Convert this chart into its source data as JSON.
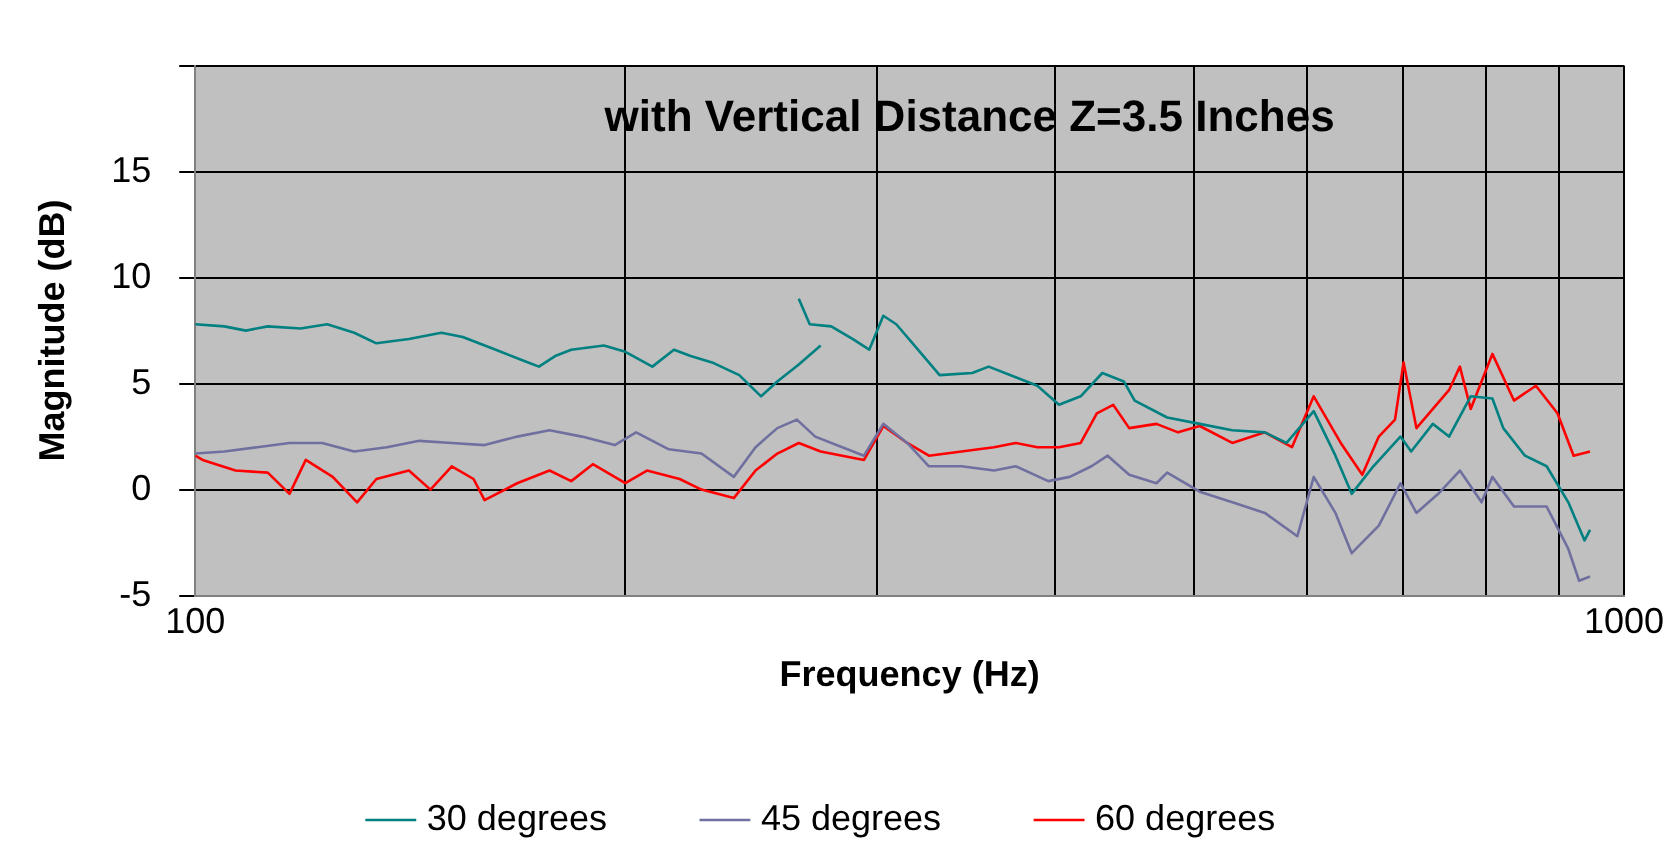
{
  "chart_data": {
    "type": "line",
    "title": "with Vertical Distance Z=3.5 Inches",
    "xlabel": "Frequency (Hz)",
    "ylabel": "Magnitude (dB)",
    "log": "x",
    "xlim": [
      100,
      1000
    ],
    "xticks": [
      100,
      {
        "value": 200,
        "label": null
      },
      {
        "value": 300,
        "label": null
      },
      {
        "value": 400,
        "label": null
      },
      {
        "value": 500,
        "label": null
      },
      {
        "value": 600,
        "label": null
      },
      {
        "value": 700,
        "label": null
      },
      {
        "value": 800,
        "label": null
      },
      {
        "value": 900,
        "label": null
      },
      1000
    ],
    "ylim": [
      -5,
      20
    ],
    "yticks": [
      -5,
      0,
      5,
      10,
      15,
      {
        "value": 20,
        "label": null
      }
    ],
    "grid": true,
    "legend": "bottom",
    "marker": "none",
    "line_style": "solid",
    "series": [
      {
        "name": "30 degrees",
        "color": "#008080",
        "x": [
          100,
          104.8,
          108.5,
          112.4,
          118.5,
          123.7,
          129.2,
          133.9,
          141.1,
          148.7,
          153.9,
          162.3,
          169.4,
          174.0,
          178.6,
          183.3,
          193.2,
          200.0,
          208.9,
          216.3,
          222.2,
          230.0,
          240.3,
          248.9,
          255.5,
          264.5,
          274.0,
          null,
          264.5,
          269.2,
          278.7,
          288.6,
          296.3,
          303.1,
          309.5,
          320.5,
          331.9,
          349.8,
          359.2,
          375.2,
          388.5,
          402.3,
          416.6,
          431.4,
          446.6,
          454.5,
          478.9,
          504.7,
          531.9,
          560.6,
          580.5,
          606.5,
          628.1,
          644.8,
          667.7,
          697.5,
          709.6,
          734.8,
          754.3,
          781.1,
          808.9,
          823.2,
          852.5,
          882.8,
          914.2,
          938.4,
          946.7
        ],
        "values": [
          7.8,
          7.7,
          7.5,
          7.7,
          7.6,
          7.8,
          7.4,
          6.9,
          7.1,
          7.4,
          7.2,
          6.6,
          6.1,
          5.8,
          6.3,
          6.6,
          6.8,
          6.5,
          5.8,
          6.6,
          6.3,
          6.0,
          5.4,
          4.4,
          5.1,
          5.9,
          6.8,
          null,
          9.0,
          7.8,
          7.7,
          7.1,
          6.6,
          8.2,
          7.8,
          6.6,
          5.4,
          5.5,
          5.8,
          5.3,
          4.9,
          4.0,
          4.4,
          5.5,
          5.1,
          4.2,
          3.4,
          3.1,
          2.8,
          2.7,
          2.2,
          3.7,
          1.6,
          -0.2,
          1.1,
          2.5,
          1.8,
          3.1,
          2.5,
          4.4,
          4.3,
          2.9,
          1.6,
          1.1,
          -0.6,
          -2.4,
          -1.9
        ]
      },
      {
        "name": "45 degrees",
        "color": "#7070a0",
        "x": [
          100,
          104.8,
          110.5,
          116.4,
          122.7,
          129.2,
          136.2,
          143.5,
          151.2,
          159.4,
          168.0,
          177.0,
          186.5,
          196.6,
          203.5,
          214.5,
          226.1,
          238.2,
          246.7,
          255.5,
          263.7,
          271.6,
          283.7,
          293.8,
          303.1,
          315.0,
          326.2,
          343.8,
          362.3,
          375.2,
          395.4,
          409.3,
          423.9,
          435.1,
          450.5,
          470.7,
          478.9,
          504.7,
          531.9,
          560.6,
          590.7,
          606.5,
          628.1,
          644.8,
          673.6,
          697.5,
          715.7,
          741.3,
          767.6,
          794.9,
          808.9,
          837.5,
          882.8,
          914.2,
          930.2,
          946.7
        ],
        "values": [
          1.7,
          1.8,
          2.0,
          2.2,
          2.2,
          1.8,
          2.0,
          2.3,
          2.2,
          2.1,
          2.5,
          2.8,
          2.5,
          2.1,
          2.7,
          1.9,
          1.7,
          0.6,
          2.0,
          2.9,
          3.3,
          2.5,
          2.0,
          1.6,
          3.1,
          2.2,
          1.1,
          1.1,
          0.9,
          1.1,
          0.4,
          0.6,
          1.1,
          1.6,
          0.7,
          0.3,
          0.8,
          -0.1,
          -0.6,
          -1.1,
          -2.2,
          0.6,
          -1.1,
          -3.0,
          -1.7,
          0.3,
          -1.1,
          -0.2,
          0.9,
          -0.6,
          0.6,
          -0.8,
          -0.8,
          -2.8,
          -4.3,
          -4.1
        ]
      },
      {
        "name": "60 degrees",
        "color": "#ff0000",
        "x": [
          100,
          101.2,
          106.7,
          112.4,
          116.4,
          119.5,
          124.8,
          129.8,
          133.9,
          141.1,
          146.1,
          151.2,
          156.6,
          159.4,
          168.0,
          177.0,
          183.3,
          189.8,
          200.0,
          207.1,
          218.3,
          226.1,
          238.2,
          246.7,
          255.5,
          264.5,
          274.0,
          283.7,
          293.8,
          303.1,
          315.0,
          326.2,
          343.8,
          362.3,
          375.2,
          388.5,
          402.3,
          416.6,
          427.6,
          439.0,
          450.5,
          470.7,
          487.4,
          504.7,
          531.9,
          560.6,
          585.6,
          606.5,
          633.5,
          655.9,
          673.6,
          691.4,
          701.0,
          715.7,
          754.4,
          767.6,
          781.1,
          808.9,
          837.5,
          867.6,
          898.3,
          922.0,
          946.7
        ],
        "values": [
          1.6,
          1.4,
          0.9,
          0.8,
          -0.2,
          1.4,
          0.6,
          -0.6,
          0.5,
          0.9,
          0.0,
          1.1,
          0.5,
          -0.5,
          0.3,
          0.9,
          0.4,
          1.2,
          0.3,
          0.9,
          0.5,
          0.0,
          -0.4,
          0.9,
          1.7,
          2.2,
          1.8,
          1.6,
          1.4,
          3.0,
          2.2,
          1.6,
          1.8,
          2.0,
          2.2,
          2.0,
          2.0,
          2.2,
          3.6,
          4.0,
          2.9,
          3.1,
          2.7,
          3.0,
          2.2,
          2.7,
          2.0,
          4.4,
          2.2,
          0.7,
          2.5,
          3.3,
          6.0,
          2.9,
          4.7,
          5.8,
          3.8,
          6.4,
          4.2,
          4.9,
          3.6,
          1.6,
          1.8
        ]
      }
    ]
  }
}
